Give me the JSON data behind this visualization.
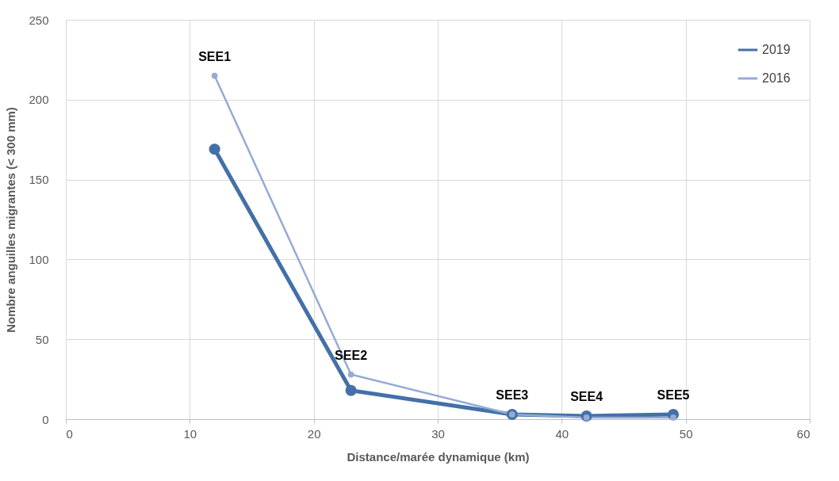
{
  "chart_data": {
    "type": "line",
    "xlabel": "Distance/marée dynamique (km)",
    "ylabel": "Nombre anguilles migrantes (< 300 mm)",
    "x": [
      12,
      23,
      36,
      42,
      49
    ],
    "series": [
      {
        "name": "2019",
        "color": "#4470a8",
        "values": [
          169,
          18,
          3,
          2,
          3
        ]
      },
      {
        "name": "2016",
        "color": "#94abd3",
        "values": [
          215,
          28,
          3,
          1,
          1
        ]
      }
    ],
    "annotations": [
      {
        "text": "SEE1",
        "x": 12,
        "y": 215
      },
      {
        "text": "SEE2",
        "x": 23,
        "y": 28
      },
      {
        "text": "SEE3",
        "x": 36,
        "y": 3
      },
      {
        "text": "SEE4",
        "x": 42,
        "y": 2
      },
      {
        "text": "SEE5",
        "x": 49,
        "y": 3
      }
    ],
    "xlim": [
      0,
      60
    ],
    "xticks": [
      0,
      10,
      20,
      30,
      40,
      50,
      60
    ],
    "ylim": [
      0,
      250
    ],
    "yticks": [
      0,
      50,
      100,
      150,
      200,
      250
    ],
    "grid": true,
    "legend": "top right",
    "marker": "circle",
    "line_style": "solid"
  }
}
